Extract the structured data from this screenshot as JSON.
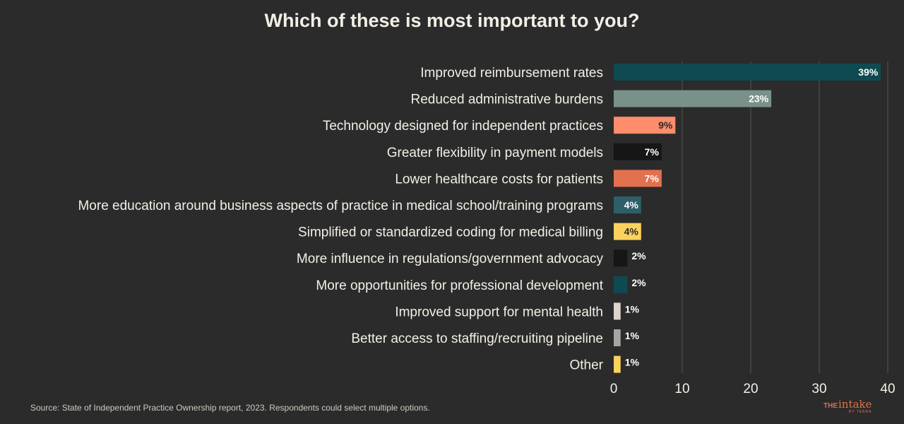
{
  "chart_data": {
    "type": "bar",
    "orientation": "horizontal",
    "title": "Which of these is most important to you?",
    "categories": [
      "Improved reimbursement rates",
      "Reduced administrative burdens",
      "Technology designed for independent practices",
      "Greater flexibility in payment models",
      "Lower healthcare costs for patients",
      "More education around business aspects of practice in medical school/training programs",
      "Simplified or standardized coding for medical billing",
      "More influence in regulations/government advocacy",
      "More opportunities for professional development",
      "Improved support for mental health",
      "Better access to staffing/recruiting pipeline",
      "Other"
    ],
    "values": [
      39,
      23,
      9,
      7,
      7,
      4,
      4,
      2,
      2,
      1,
      1,
      1
    ],
    "value_labels": [
      "39%",
      "23%",
      "9%",
      "7%",
      "7%",
      "4%",
      "4%",
      "2%",
      "2%",
      "1%",
      "1%",
      "1%"
    ],
    "colors": [
      "#0f4a52",
      "#7a918a",
      "#ff8c6b",
      "#161616",
      "#e3704f",
      "#2e5f69",
      "#fcd25d",
      "#161616",
      "#0f4a52",
      "#ddd5cc",
      "#a8a5a0",
      "#fcd25d"
    ],
    "xticks": [
      0,
      10,
      20,
      30,
      40
    ],
    "xlim": [
      0,
      40
    ],
    "xlabel": "",
    "ylabel": "",
    "grid": true
  },
  "footer": {
    "source": "Source: State of Independent Practice Ownership report, 2023. Respondents could select multiple options."
  },
  "logo": {
    "the": "THE",
    "name": "intake",
    "by": "BY TEBRA",
    "color": "#d9734e"
  }
}
